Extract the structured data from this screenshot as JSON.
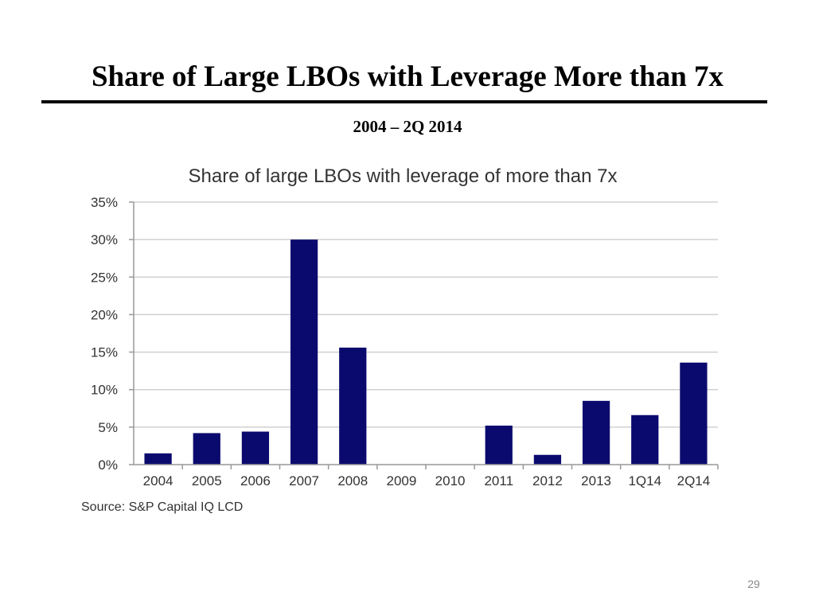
{
  "slide": {
    "title": "Share of Large LBOs with Leverage More than 7x",
    "subtitle": "2004 – 2Q 2014",
    "page_number": "29"
  },
  "colors": {
    "bar": "#0a0a6e",
    "grid": "#d0d0d0",
    "axis": "#999999"
  },
  "chart_data": {
    "type": "bar",
    "title": "Share of large LBOs with leverage of more than 7x",
    "categories": [
      "2004",
      "2005",
      "2006",
      "2007",
      "2008",
      "2009",
      "2010",
      "2011",
      "2012",
      "2013",
      "1Q14",
      "2Q14"
    ],
    "values": [
      1.5,
      4.2,
      4.4,
      30.0,
      15.6,
      0,
      0,
      5.2,
      1.3,
      8.5,
      6.6,
      13.6
    ],
    "y_ticks": [
      0,
      5,
      10,
      15,
      20,
      25,
      30,
      35
    ],
    "y_tick_labels": [
      "0%",
      "5%",
      "10%",
      "15%",
      "20%",
      "25%",
      "30%",
      "35%"
    ],
    "ylim": [
      0,
      35
    ],
    "xlabel": "",
    "ylabel": "",
    "grid": true,
    "legend": "none",
    "source": "Source: S&P Capital IQ LCD"
  }
}
